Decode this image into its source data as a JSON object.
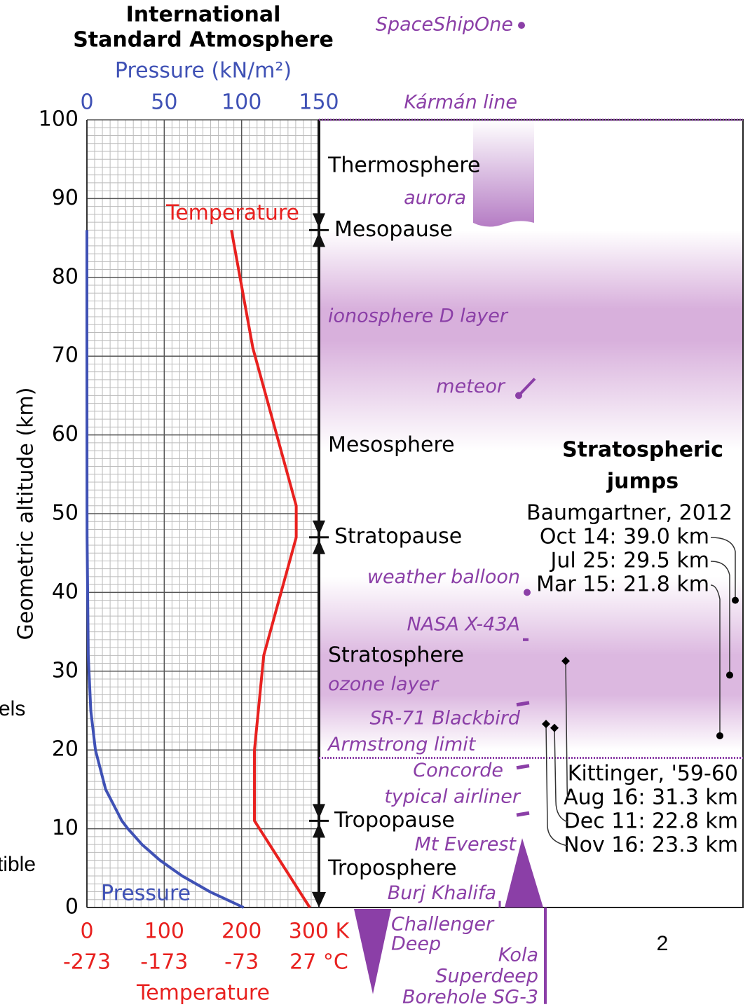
{
  "chart_data": {
    "type": "line",
    "title": [
      "International",
      "Standard Atmosphere"
    ],
    "xlabel": "Pressure (kN/m²)",
    "ylabel": "Geometric altitude (km)",
    "x2label": "Temperature",
    "xlim": [
      0,
      150
    ],
    "xticks": [
      0,
      50,
      100,
      150
    ],
    "xminor": 5,
    "x2lim": [
      0,
      300
    ],
    "x2ticks": [
      0,
      100,
      200,
      {
        "value": 300,
        "label": "300 K"
      }
    ],
    "x2ticks_celsius": [
      {
        "value": 0,
        "label": "-273"
      },
      {
        "value": 100,
        "label": "-173"
      },
      {
        "value": 200,
        "label": "-73"
      },
      {
        "value": 300,
        "label": "27 °C"
      }
    ],
    "ylim": [
      0,
      100
    ],
    "yticks": [
      0,
      10,
      20,
      30,
      40,
      50,
      60,
      70,
      80,
      90,
      100
    ],
    "yminor": 1,
    "grid": true,
    "series": [
      {
        "name": "Pressure",
        "color": "#3f51b5",
        "axis": "x",
        "values": [
          101.325,
          79.5,
          61.6,
          47.2,
          35.6,
          26.5,
          22.6,
          12.1,
          5.5,
          2.5,
          0.87,
          0.11,
          0.067,
          0.004,
          0.0004
        ],
        "altitudes": [
          0,
          2,
          4,
          6,
          8,
          10,
          11,
          15,
          20,
          25,
          32,
          47,
          51,
          71,
          86
        ]
      },
      {
        "name": "Temperature",
        "color": "#e8211f",
        "axis": "x2",
        "values": [
          288.15,
          216.65,
          216.65,
          228.65,
          270.65,
          270.65,
          214.65,
          186.87
        ],
        "altitudes": [
          0,
          11,
          20,
          32,
          47,
          51,
          71,
          86
        ]
      }
    ],
    "layers": [
      "Thermosphere",
      "Mesosphere",
      "Stratosphere",
      "Troposphere"
    ],
    "boundaries": [
      {
        "name": "Mesopause",
        "altitude": 86
      },
      {
        "name": "Stratopause",
        "altitude": 47
      },
      {
        "name": "Tropopause",
        "altitude": 11
      }
    ],
    "annotations": [
      {
        "text": [
          "SpaceShipOne"
        ],
        "altitude": 112
      },
      {
        "text": [
          "Kármán line"
        ],
        "altitude": 100
      },
      {
        "text": [
          "aurora"
        ],
        "altitude": 90
      },
      {
        "text": [
          "ionosphere D layer"
        ],
        "altitude": 75
      },
      {
        "text": [
          "meteor"
        ],
        "altitude": 65
      },
      {
        "text": [
          "weather balloon"
        ],
        "altitude": 40
      },
      {
        "text": [
          "NASA X-43A"
        ],
        "altitude": 34
      },
      {
        "text": [
          "ozone layer"
        ],
        "altitude": 28
      },
      {
        "text": [
          "SR-71 Blackbird"
        ],
        "altitude": 26
      },
      {
        "text": [
          "Armstrong limit"
        ],
        "altitude": 19
      },
      {
        "text": [
          "Concorde"
        ],
        "altitude": 18
      },
      {
        "text": [
          "typical airliner"
        ],
        "altitude": 12
      },
      {
        "text": [
          "Mt Everest"
        ],
        "altitude": 8.8
      },
      {
        "text": [
          "Burj Khalifa"
        ],
        "altitude": 0.83
      },
      {
        "text": [
          "Challenger",
          "Deep"
        ],
        "altitude": -11
      },
      {
        "text": [
          "Kola",
          "Superdeep",
          "Borehole SG-3"
        ],
        "altitude": -12.26
      }
    ],
    "jumps_title": [
      "Stratospheric",
      "jumps"
    ],
    "jumps": [
      {
        "name": "Baumgartner, 2012",
        "values": [
          39.0,
          29.5,
          21.8
        ],
        "value_labels": [
          "Oct 14: 39.0 km",
          "Jul 25: 29.5 km",
          "Mar 15: 21.8 km"
        ]
      },
      {
        "name": "Kittinger, '59-60",
        "values": [
          31.3,
          22.8,
          23.3
        ],
        "value_labels": [
          "Aug 16: 31.3 km",
          "Dec 11: 22.8 km",
          "Nov 16: 23.3 km"
        ]
      }
    ]
  },
  "background_text": [
    "els",
    "tible",
    "2"
  ]
}
